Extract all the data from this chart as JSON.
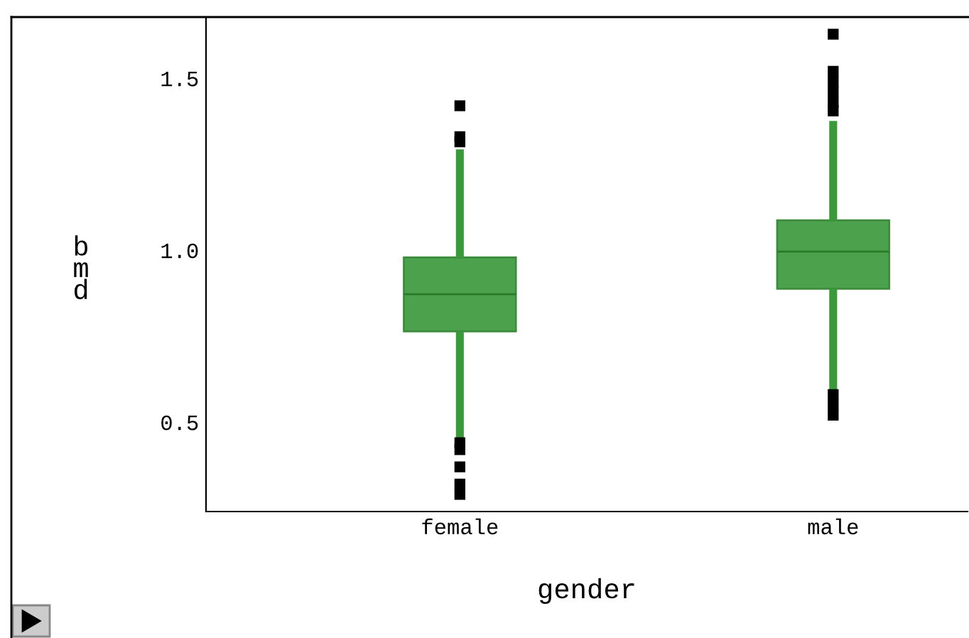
{
  "chart_data": {
    "type": "box",
    "xlabel": "gender",
    "ylabel": "bmd",
    "categories": [
      "female",
      "male"
    ],
    "boxes": [
      {
        "low": 0.455,
        "q1": 0.764,
        "median": 0.872,
        "q3": 0.979,
        "high": 1.293,
        "outliers": [
          1.42,
          1.33,
          1.315,
          0.44,
          0.42,
          0.37,
          0.32,
          0.29
        ]
      },
      {
        "low": 0.59,
        "q1": 0.888,
        "median": 0.996,
        "q3": 1.087,
        "high": 1.376,
        "outliers": [
          1.628,
          1.52,
          1.49,
          1.46,
          1.43,
          1.405,
          0.58,
          0.55,
          0.52
        ]
      }
    ],
    "color": "#4ca24c",
    "ylim": [
      0.24,
      1.678
    ],
    "yticks": [
      0.5,
      {
        "value": 1.0,
        "label": "1.0"
      },
      1.5
    ],
    "grid": false,
    "legend": false
  }
}
